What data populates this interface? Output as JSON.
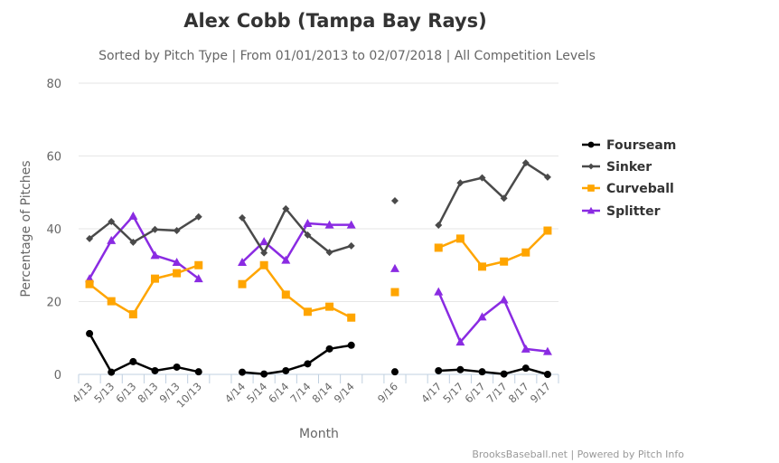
{
  "chart_data": {
    "type": "line",
    "title": "Alex Cobb (Tampa Bay Rays)",
    "subtitle": "Sorted by Pitch Type | From 01/01/2013 to 02/07/2018 | All Competition Levels",
    "xlabel": "Month",
    "ylabel": "Percentage of Pitches",
    "ylim": [
      0,
      80
    ],
    "yticks": [
      "0",
      "20",
      "40",
      "60",
      "80"
    ],
    "grid": true,
    "legend_position": "right",
    "categories": [
      "4/13",
      "5/13",
      "6/13",
      "8/13",
      "9/13",
      "10/13",
      "",
      "4/14",
      "5/14",
      "6/14",
      "7/14",
      "8/14",
      "9/14",
      "",
      "9/16",
      "",
      "4/17",
      "5/17",
      "6/17",
      "7/17",
      "8/17",
      "9/17"
    ],
    "series": [
      {
        "name": "Fourseam",
        "color": "#000000",
        "marker": "circle",
        "values": [
          11.2,
          0.6,
          3.5,
          1.0,
          2.0,
          0.7,
          null,
          0.6,
          0.1,
          1.0,
          2.9,
          7.0,
          8.0,
          null,
          0.7,
          null,
          1.0,
          1.3,
          0.7,
          0.1,
          1.7,
          0.0
        ]
      },
      {
        "name": "Sinker",
        "color": "#4a4a4a",
        "marker": "diamond",
        "values": [
          37.3,
          42.0,
          36.3,
          39.8,
          39.5,
          43.3,
          null,
          43.0,
          33.4,
          45.5,
          38.3,
          33.5,
          35.3,
          null,
          47.7,
          null,
          41.0,
          52.6,
          54.0,
          48.4,
          58.1,
          54.2
        ]
      },
      {
        "name": "Curveball",
        "color": "#ffa500",
        "marker": "square",
        "values": [
          24.8,
          20.1,
          16.5,
          26.3,
          27.8,
          30.0,
          null,
          24.8,
          30.0,
          21.9,
          17.2,
          18.6,
          15.6,
          null,
          22.6,
          null,
          34.8,
          37.3,
          29.6,
          31.0,
          33.5,
          39.5
        ]
      },
      {
        "name": "Splitter",
        "color": "#8a2be2",
        "marker": "triangle",
        "values": [
          26.3,
          36.8,
          43.5,
          32.7,
          30.8,
          26.3,
          null,
          30.8,
          36.5,
          31.4,
          41.5,
          41.1,
          41.1,
          null,
          29.1,
          null,
          22.7,
          8.9,
          15.8,
          20.5,
          7.0,
          6.3
        ]
      }
    ]
  },
  "credits": "BrooksBaseball.net | Powered by Pitch Info"
}
